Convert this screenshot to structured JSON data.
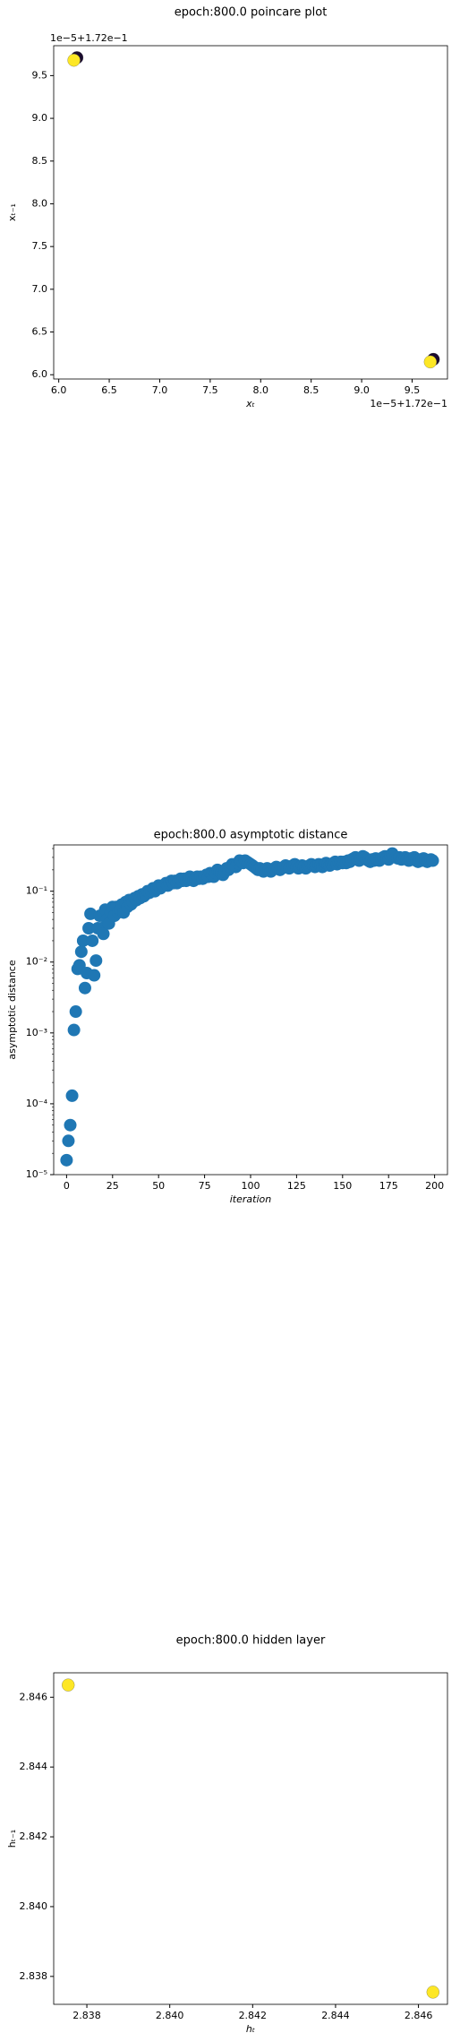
{
  "chart_data": [
    {
      "type": "scatter",
      "title": "epoch:800.0 poincare plot",
      "xlabel": "xₜ",
      "ylabel": "xₜ₋₁",
      "x_offset_text": "1e−5+1.72e−1",
      "y_offset_text": "1e−5+1.72e−1",
      "x": [
        6.18,
        6.15,
        9.71,
        9.68
      ],
      "y": [
        9.71,
        9.68,
        6.18,
        6.15
      ],
      "colors": [
        "#1a0b2e",
        "#fde725",
        "#1a0b2e",
        "#fde725"
      ],
      "xlim": [
        5.95,
        9.85
      ],
      "ylim": [
        5.95,
        9.85
      ],
      "xticks": [
        {
          "value": 6,
          "label": "6.0"
        },
        6.5,
        {
          "value": 7,
          "label": "7.0"
        },
        7.5,
        {
          "value": 8,
          "label": "8.0"
        },
        8.5,
        {
          "value": 9,
          "label": "9.0"
        },
        9.5
      ],
      "yticks": [
        {
          "value": 6,
          "label": "6.0"
        },
        6.5,
        {
          "value": 7,
          "label": "7.0"
        },
        7.5,
        {
          "value": 8,
          "label": "8.0"
        },
        8.5,
        {
          "value": 9,
          "label": "9.0"
        },
        9.5
      ]
    },
    {
      "type": "scatter",
      "title": "epoch:800.0 asymptotic distance",
      "xlabel": "iteration",
      "ylabel": "asymptotic distance",
      "yscale": "log",
      "color": "#1f77b4",
      "x": [
        0,
        1,
        2,
        3,
        4,
        5,
        6,
        7,
        8,
        9,
        10,
        11,
        12,
        13,
        14,
        15,
        16,
        17,
        18,
        19,
        20,
        21,
        22,
        23,
        24,
        25,
        26,
        27,
        28,
        29,
        30,
        31,
        32,
        33,
        34,
        35,
        36,
        37,
        38,
        39,
        40,
        41,
        42,
        43,
        44,
        45,
        46,
        47,
        48,
        49,
        50,
        51,
        52,
        53,
        54,
        55,
        56,
        57,
        58,
        59,
        60,
        61,
        62,
        63,
        64,
        65,
        66,
        67,
        68,
        69,
        70,
        71,
        72,
        73,
        74,
        75,
        76,
        77,
        78,
        79,
        80,
        81,
        82,
        83,
        84,
        85,
        86,
        87,
        88,
        89,
        90,
        91,
        92,
        93,
        94,
        95,
        96,
        97,
        98,
        99,
        100,
        101,
        102,
        103,
        104,
        105,
        106,
        107,
        108,
        109,
        110,
        111,
        112,
        113,
        114,
        115,
        116,
        117,
        118,
        119,
        120,
        121,
        122,
        123,
        124,
        125,
        126,
        127,
        128,
        129,
        130,
        131,
        132,
        133,
        134,
        135,
        136,
        137,
        138,
        139,
        140,
        141,
        142,
        143,
        144,
        145,
        146,
        147,
        148,
        149,
        150,
        151,
        152,
        153,
        154,
        155,
        156,
        157,
        158,
        159,
        160,
        161,
        162,
        163,
        164,
        165,
        166,
        167,
        168,
        169,
        170,
        171,
        172,
        173,
        174,
        175,
        176,
        177,
        178,
        179,
        180,
        181,
        182,
        183,
        184,
        185,
        186,
        187,
        188,
        189,
        190,
        191,
        192,
        193,
        194,
        195,
        196,
        197,
        198,
        199
      ],
      "y": [
        1.6e-05,
        3e-05,
        5e-05,
        0.00013,
        0.0011,
        0.002,
        0.008,
        0.009,
        0.014,
        0.02,
        0.0043,
        0.007,
        0.03,
        0.048,
        0.02,
        0.0065,
        0.0105,
        0.03,
        0.045,
        0.03,
        0.025,
        0.055,
        0.04,
        0.035,
        0.05,
        0.06,
        0.045,
        0.06,
        0.05,
        0.055,
        0.065,
        0.05,
        0.07,
        0.06,
        0.075,
        0.065,
        0.07,
        0.08,
        0.075,
        0.085,
        0.08,
        0.09,
        0.085,
        0.09,
        0.1,
        0.095,
        0.1,
        0.11,
        0.1,
        0.11,
        0.12,
        0.11,
        0.12,
        0.12,
        0.13,
        0.12,
        0.13,
        0.14,
        0.13,
        0.14,
        0.13,
        0.14,
        0.15,
        0.14,
        0.15,
        0.14,
        0.15,
        0.16,
        0.15,
        0.14,
        0.15,
        0.16,
        0.15,
        0.16,
        0.15,
        0.16,
        0.17,
        0.16,
        0.18,
        0.17,
        0.16,
        0.18,
        0.2,
        0.19,
        0.18,
        0.17,
        0.19,
        0.21,
        0.2,
        0.22,
        0.24,
        0.23,
        0.22,
        0.25,
        0.27,
        0.26,
        0.25,
        0.27,
        0.26,
        0.25,
        0.24,
        0.23,
        0.22,
        0.21,
        0.2,
        0.21,
        0.2,
        0.19,
        0.2,
        0.21,
        0.2,
        0.19,
        0.2,
        0.21,
        0.22,
        0.21,
        0.2,
        0.21,
        0.22,
        0.23,
        0.22,
        0.21,
        0.22,
        0.23,
        0.24,
        0.22,
        0.21,
        0.22,
        0.23,
        0.22,
        0.21,
        0.22,
        0.23,
        0.24,
        0.23,
        0.22,
        0.23,
        0.24,
        0.23,
        0.22,
        0.24,
        0.25,
        0.24,
        0.23,
        0.24,
        0.25,
        0.26,
        0.24,
        0.25,
        0.26,
        0.25,
        0.26,
        0.25,
        0.27,
        0.26,
        0.28,
        0.29,
        0.3,
        0.28,
        0.27,
        0.29,
        0.31,
        0.3,
        0.28,
        0.27,
        0.26,
        0.28,
        0.27,
        0.29,
        0.28,
        0.27,
        0.29,
        0.3,
        0.31,
        0.29,
        0.28,
        0.32,
        0.34,
        0.31,
        0.3,
        0.29,
        0.3,
        0.28,
        0.29,
        0.3,
        0.28,
        0.27,
        0.29,
        0.28,
        0.3,
        0.27,
        0.26,
        0.28,
        0.27,
        0.29,
        0.28,
        0.26,
        0.27,
        0.28,
        0.27
      ],
      "xlim": [
        -7,
        207
      ],
      "ylim": [
        1e-05,
        0.45
      ],
      "xticks": [
        0,
        25,
        50,
        75,
        100,
        125,
        150,
        175,
        200
      ],
      "yticks": [
        {
          "value": 1e-05,
          "label": "10⁻⁵"
        },
        {
          "value": 0.0001,
          "label": "10⁻⁴"
        },
        {
          "value": 0.001,
          "label": "10⁻³"
        },
        {
          "value": 0.01,
          "label": "10⁻²"
        },
        {
          "value": 0.1,
          "label": "10⁻¹"
        }
      ]
    },
    {
      "type": "scatter",
      "title": "epoch:800.0 hidden layer",
      "xlabel": "hₜ",
      "ylabel": "hₜ₋₁",
      "x": [
        2.83755,
        2.84635
      ],
      "y": [
        2.84635,
        2.83755
      ],
      "colors": [
        "#fde725",
        "#fde725"
      ],
      "xlim": [
        2.8372,
        2.8467
      ],
      "ylim": [
        2.8372,
        2.8467
      ],
      "xticks": [
        {
          "value": 2.838,
          "label": "2.838"
        },
        {
          "value": 2.84,
          "label": "2.840"
        },
        {
          "value": 2.842,
          "label": "2.842"
        },
        {
          "value": 2.844,
          "label": "2.844"
        },
        {
          "value": 2.846,
          "label": "2.846"
        }
      ],
      "yticks": [
        {
          "value": 2.838,
          "label": "2.838"
        },
        {
          "value": 2.84,
          "label": "2.840"
        },
        {
          "value": 2.842,
          "label": "2.842"
        },
        {
          "value": 2.844,
          "label": "2.844"
        },
        {
          "value": 2.846,
          "label": "2.846"
        }
      ]
    }
  ]
}
